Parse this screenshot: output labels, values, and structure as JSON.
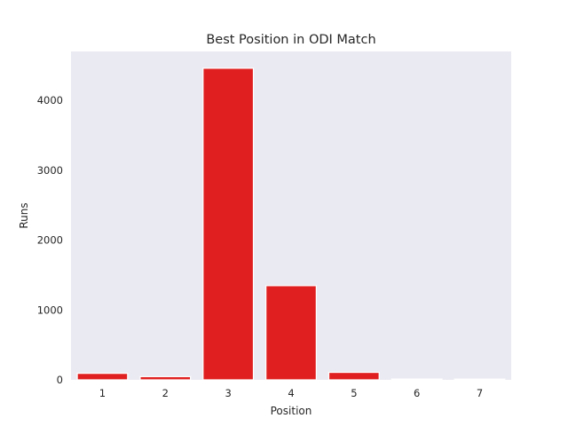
{
  "chart_data": {
    "type": "bar",
    "title": "Best Position in ODI Match",
    "xlabel": "Position",
    "ylabel": "Runs",
    "categories": [
      "1",
      "2",
      "3",
      "4",
      "5",
      "6",
      "7"
    ],
    "values": [
      93,
      46,
      4460,
      1348,
      107,
      12,
      11
    ],
    "ylim": [
      0,
      4700
    ],
    "yticks": [
      0,
      1000,
      2000,
      3000,
      4000
    ],
    "grid": false,
    "colors": {
      "bar": "#e02020",
      "plot_background": "#eaeaf2",
      "bar_edge": "#ffffff"
    }
  }
}
